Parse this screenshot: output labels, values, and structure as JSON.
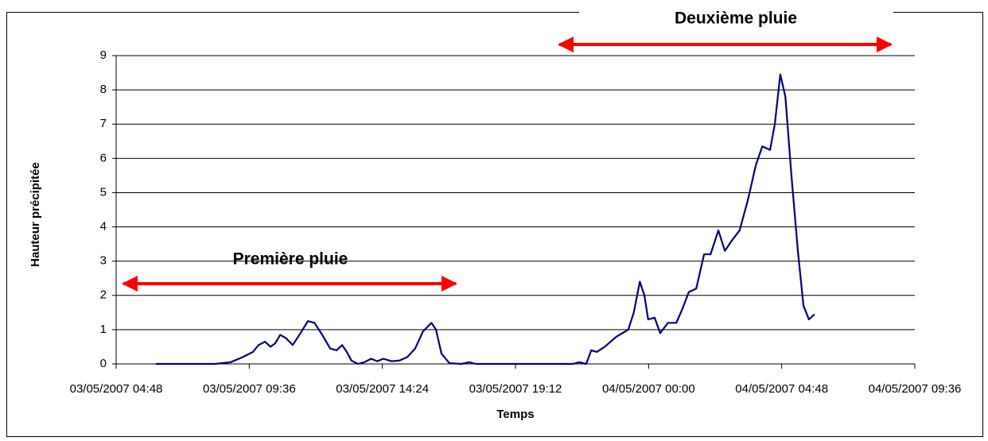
{
  "chart_data": {
    "type": "line",
    "xlabel": "Temps",
    "ylabel": "Hauteur précipitée",
    "annotations": [
      "Première pluie",
      "Deuxième pluie"
    ],
    "x": [
      "03/05/2007 06:14",
      "03/05/2007 08:21",
      "03/05/2007 08:56",
      "03/05/2007 09:22",
      "03/05/2007 09:44",
      "03/05/2007 09:56",
      "03/05/2007 10:10",
      "03/05/2007 10:22",
      "03/05/2007 10:32",
      "03/05/2007 10:43",
      "03/05/2007 10:56",
      "03/05/2007 11:10",
      "03/05/2007 11:27",
      "03/05/2007 11:43",
      "03/05/2007 11:57",
      "03/05/2007 12:14",
      "03/05/2007 12:31",
      "03/05/2007 12:45",
      "03/05/2007 12:57",
      "03/05/2007 13:07",
      "03/05/2007 13:17",
      "03/05/2007 13:31",
      "03/05/2007 13:45",
      "03/05/2007 14:00",
      "03/05/2007 14:13",
      "03/05/2007 14:26",
      "03/05/2007 14:44",
      "03/05/2007 15:01",
      "03/05/2007 15:18",
      "03/05/2007 15:35",
      "03/05/2007 15:52",
      "03/05/2007 16:10",
      "03/05/2007 16:20",
      "03/05/2007 16:32",
      "03/05/2007 16:49",
      "03/05/2007 17:15",
      "03/05/2007 17:32",
      "03/05/2007 17:46",
      "03/05/2007 21:16",
      "03/05/2007 21:30",
      "03/05/2007 21:45",
      "03/05/2007 21:56",
      "03/05/2007 22:08",
      "03/05/2007 22:25",
      "03/05/2007 22:51",
      "03/05/2007 23:16",
      "03/05/2007 23:28",
      "03/05/2007 23:41",
      "03/05/2007 23:51",
      "03/05/2007 23:59",
      "04/05/2007 00:13",
      "04/05/2007 00:25",
      "04/05/2007 00:42",
      "04/05/2007 01:00",
      "04/05/2007 01:13",
      "04/05/2007 01:27",
      "04/05/2007 01:43",
      "04/05/2007 02:00",
      "04/05/2007 02:14",
      "04/05/2007 02:31",
      "04/05/2007 02:45",
      "04/05/2007 03:00",
      "04/05/2007 03:17",
      "04/05/2007 03:35",
      "04/05/2007 03:52",
      "04/05/2007 04:06",
      "04/05/2007 04:23",
      "04/05/2007 04:33",
      "04/05/2007 04:45",
      "04/05/2007 04:56",
      "04/05/2007 05:09",
      "04/05/2007 05:23",
      "04/05/2007 05:35",
      "04/05/2007 05:47",
      "04/05/2007 05:59"
    ],
    "series": [
      {
        "color": "#000080",
        "values": [
          0,
          0,
          0.05,
          0.2,
          0.35,
          0.55,
          0.65,
          0.5,
          0.6,
          0.85,
          0.75,
          0.55,
          0.9,
          1.25,
          1.2,
          0.85,
          0.45,
          0.4,
          0.55,
          0.35,
          0.1,
          0,
          0.05,
          0.15,
          0.08,
          0.15,
          0.08,
          0.1,
          0.2,
          0.45,
          0.95,
          1.2,
          1.0,
          0.3,
          0.02,
          0,
          0.05,
          0,
          0,
          0.05,
          0,
          0.4,
          0.35,
          0.5,
          0.8,
          1.0,
          1.5,
          2.4,
          2.0,
          1.3,
          1.35,
          0.9,
          1.2,
          1.2,
          1.6,
          2.1,
          2.2,
          3.2,
          3.2,
          3.9,
          3.3,
          3.6,
          3.9,
          4.8,
          5.8,
          6.35,
          6.25,
          7.0,
          8.45,
          7.8,
          5.5,
          3.3,
          1.7,
          1.3,
          1.45
        ]
      }
    ],
    "xlim": [
      "03/05/2007 04:48",
      "04/05/2007 09:36"
    ],
    "xticks": [
      "03/05/2007 04:48",
      "03/05/2007 09:36",
      "03/05/2007 14:24",
      "03/05/2007 19:12",
      "04/05/2007 00:00",
      "04/05/2007 04:48",
      "04/05/2007 09:36"
    ],
    "ylim": [
      0,
      9
    ],
    "yticks": [
      0,
      1,
      2,
      3,
      4,
      5,
      6,
      7,
      8,
      9
    ],
    "grid": true
  }
}
